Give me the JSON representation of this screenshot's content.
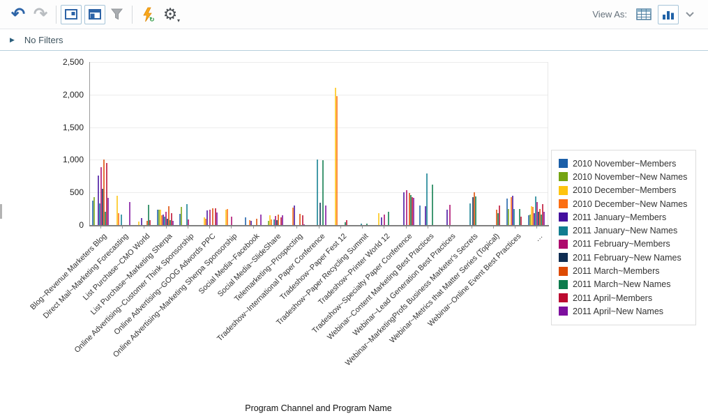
{
  "toolbar": {
    "view_as_label": "View As:"
  },
  "filter_bar": {
    "label": "No Filters"
  },
  "chart_data": {
    "type": "bar",
    "title": "",
    "xlabel": "Program Channel and Program Name",
    "ylabel": "",
    "ylim": [
      0,
      2500
    ],
    "yticks": [
      0,
      500,
      1000,
      1500,
      2000,
      2500
    ],
    "ytick_labels": [
      "0",
      "500",
      "1,000",
      "1,500",
      "2,000",
      "2,500"
    ],
    "grid": "horizontal",
    "legend_position": "right",
    "categories": [
      "Blog~Revenue Marketers Blog",
      "Direct Mail~Marketing Forecasting",
      "List Purchase~CMO World",
      "List Purchase~Marketing Sherpa",
      "Online Advertising~Customer Think Sponsorship",
      "Online Advertising~GOOG Adwords PPC",
      "Online Advertising~Marketing Sherpa Sponsorship",
      "Social Media~Facebook",
      "Social Media~SlideShare",
      "Telemarketing~Prospecting",
      "Tradeshow~International Paper Conference",
      "Tradeshow~Paper Fest 12",
      "Tradeshow~Paper Recycling Summit",
      "Tradeshow~Printer World 12",
      "Tradeshow~Specialty Paper Conference",
      "Webinar~Content Marketing Best Practices",
      "Webinar~Lead Generation Best Practices",
      "Webinar~MarketingProfs Business Marketer's Secrets",
      "Webinar~Metrics that Matter Series (Topical)",
      "Webinar~Online Event Best Practices",
      "…"
    ],
    "series": [
      {
        "name": "2010 November~Members",
        "color": "#1b5fa8",
        "values": [
          370,
          0,
          0,
          230,
          175,
          0,
          0,
          120,
          0,
          0,
          0,
          0,
          0,
          0,
          0,
          300,
          0,
          0,
          0,
          410,
          150
        ]
      },
      {
        "name": "2010 November~New Names",
        "color": "#74a411",
        "values": [
          430,
          0,
          0,
          240,
          280,
          0,
          0,
          0,
          60,
          0,
          0,
          0,
          0,
          0,
          0,
          0,
          0,
          0,
          0,
          250,
          160
        ]
      },
      {
        "name": "2010 December~Members",
        "color": "#fec40e",
        "values": [
          0,
          450,
          50,
          230,
          0,
          120,
          230,
          0,
          150,
          0,
          0,
          2100,
          0,
          185,
          0,
          0,
          0,
          0,
          0,
          0,
          290
        ]
      },
      {
        "name": "2010 December~New Names",
        "color": "#fc6e12",
        "values": [
          0,
          180,
          0,
          150,
          0,
          100,
          250,
          80,
          90,
          270,
          0,
          1975,
          0,
          0,
          0,
          0,
          0,
          0,
          0,
          430,
          280
        ]
      },
      {
        "name": "2011 January~Members",
        "color": "#440f9e",
        "values": [
          760,
          0,
          110,
          160,
          0,
          220,
          0,
          60,
          0,
          300,
          0,
          0,
          0,
          120,
          505,
          290,
          240,
          0,
          0,
          450,
          180
        ]
      },
      {
        "name": "2011 January~New Names",
        "color": "#107d90",
        "values": [
          330,
          160,
          0,
          130,
          320,
          0,
          0,
          0,
          90,
          0,
          1000,
          0,
          25,
          0,
          0,
          790,
          0,
          330,
          0,
          250,
          440
        ]
      },
      {
        "name": "2011 February~Members",
        "color": "#ad0a6d",
        "values": [
          890,
          0,
          0,
          200,
          90,
          230,
          130,
          0,
          140,
          0,
          0,
          0,
          0,
          160,
          530,
          0,
          305,
          0,
          0,
          0,
          350
        ]
      },
      {
        "name": "2011 February~New Names",
        "color": "#0f2d52",
        "values": [
          560,
          0,
          0,
          100,
          0,
          0,
          0,
          0,
          70,
          0,
          340,
          0,
          0,
          0,
          0,
          0,
          0,
          430,
          0,
          0,
          200
        ]
      },
      {
        "name": "2011 March~Members",
        "color": "#dd4a03",
        "values": [
          1000,
          0,
          65,
          290,
          0,
          260,
          0,
          100,
          160,
          170,
          0,
          0,
          0,
          0,
          490,
          0,
          0,
          500,
          235,
          0,
          250
        ]
      },
      {
        "name": "2011 March~New Names",
        "color": "#0c7b4c",
        "values": [
          200,
          0,
          310,
          80,
          0,
          0,
          0,
          0,
          0,
          0,
          990,
          40,
          20,
          200,
          460,
          620,
          0,
          440,
          180,
          250,
          160
        ]
      },
      {
        "name": "2011 April~Members",
        "color": "#bc0a30",
        "values": [
          950,
          0,
          75,
          180,
          0,
          255,
          0,
          0,
          120,
          150,
          0,
          70,
          0,
          0,
          430,
          0,
          0,
          0,
          300,
          130,
          320
        ]
      },
      {
        "name": "2011 April~New Names",
        "color": "#7d0f9e",
        "values": [
          420,
          350,
          0,
          60,
          0,
          190,
          0,
          160,
          150,
          15,
          300,
          0,
          0,
          0,
          415,
          0,
          0,
          0,
          0,
          0,
          200
        ]
      }
    ]
  }
}
